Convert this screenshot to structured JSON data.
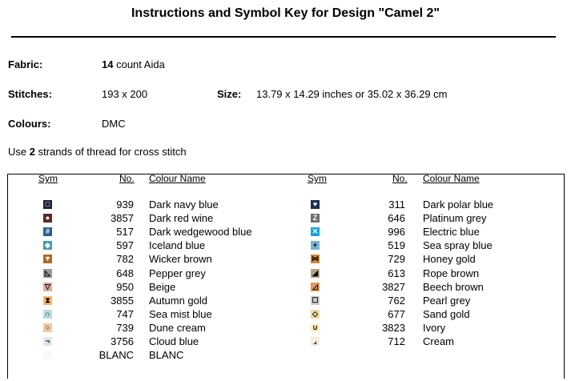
{
  "title": "Instructions and Symbol Key for Design \"Camel 2\"",
  "fabric": {
    "label": "Fabric:",
    "count": "14",
    "rest": "count Aida"
  },
  "stitches": {
    "label": "Stitches:",
    "value": "193 x 200"
  },
  "size": {
    "label": "Size:",
    "value": "13.79 x 14.29 inches or 35.02 x 36.29 cm"
  },
  "colours": {
    "label": "Colours:",
    "value": "DMC"
  },
  "instruction": {
    "pre": "Use",
    "strands": "2",
    "post": "strands of thread for cross stitch"
  },
  "headers": {
    "sym": "Sym",
    "no": "No.",
    "name": "Colour Name"
  },
  "left": [
    {
      "no": "939",
      "name": "Dark navy blue",
      "color": "#1c2038",
      "glyph": "□",
      "fg": "#fff"
    },
    {
      "no": "3857",
      "name": "Dark red wine",
      "color": "#5a2a26",
      "glyph": "●",
      "fg": "#fff"
    },
    {
      "no": "517",
      "name": "Dark wedgewood blue",
      "color": "#2d5f8e",
      "glyph": "#",
      "fg": "#fff"
    },
    {
      "no": "597",
      "name": "Iceland blue",
      "color": "#4a9aa8",
      "glyph": "◆",
      "fg": "#fff"
    },
    {
      "no": "782",
      "name": "Wicker brown",
      "color": "#b06a22",
      "glyph": "▼",
      "fg": "#fff"
    },
    {
      "no": "648",
      "name": "Pepper grey",
      "color": "#9a9890",
      "glyph": "◺",
      "fg": "#000"
    },
    {
      "no": "950",
      "name": "Beige",
      "color": "#dcae98",
      "glyph": "▽",
      "fg": "#000"
    },
    {
      "no": "3855",
      "name": "Autumn gold",
      "color": "#f6b868",
      "glyph": "⧗",
      "fg": "#000"
    },
    {
      "no": "747",
      "name": "Sea mist blue",
      "color": "#b8dce0",
      "glyph": "∩",
      "fg": "#000"
    },
    {
      "no": "739",
      "name": "Dune cream",
      "color": "#ecc8a6",
      "glyph": "○",
      "fg": "#000"
    },
    {
      "no": "3756",
      "name": "Cloud blue",
      "color": "#dde8ee",
      "glyph": "¬",
      "fg": "#000"
    },
    {
      "no": "BLANC",
      "name": "BLANC",
      "color": "#f8f8f8",
      "glyph": "",
      "fg": "#000"
    }
  ],
  "right": [
    {
      "no": "311",
      "name": "Dark polar blue",
      "color": "#1c3050",
      "glyph": "♥",
      "fg": "#fff"
    },
    {
      "no": "646",
      "name": "Platinum grey",
      "color": "#6e6e6a",
      "glyph": "Z",
      "fg": "#fff"
    },
    {
      "no": "996",
      "name": "Electric blue",
      "color": "#1aa0e0",
      "glyph": "✕",
      "fg": "#fff"
    },
    {
      "no": "519",
      "name": "Sea spray blue",
      "color": "#7ab4d2",
      "glyph": "+",
      "fg": "#000"
    },
    {
      "no": "729",
      "name": "Honey gold",
      "color": "#c88a3a",
      "glyph": "⋈",
      "fg": "#000"
    },
    {
      "no": "613",
      "name": "Rope brown",
      "color": "#b4a482",
      "glyph": "◢",
      "fg": "#000"
    },
    {
      "no": "3827",
      "name": "Beech brown",
      "color": "#e09a5a",
      "glyph": "◿",
      "fg": "#000"
    },
    {
      "no": "762",
      "name": "Pearl grey",
      "color": "#cccccc",
      "glyph": "☐",
      "fg": "#000"
    },
    {
      "no": "677",
      "name": "Sand gold",
      "color": "#eedaa0",
      "glyph": "◇",
      "fg": "#000"
    },
    {
      "no": "3823",
      "name": "Ivory",
      "color": "#fdf2c0",
      "glyph": "∪",
      "fg": "#000"
    },
    {
      "no": "712",
      "name": "Cream",
      "color": "#f4ecdc",
      "glyph": "⌟",
      "fg": "#000"
    }
  ]
}
